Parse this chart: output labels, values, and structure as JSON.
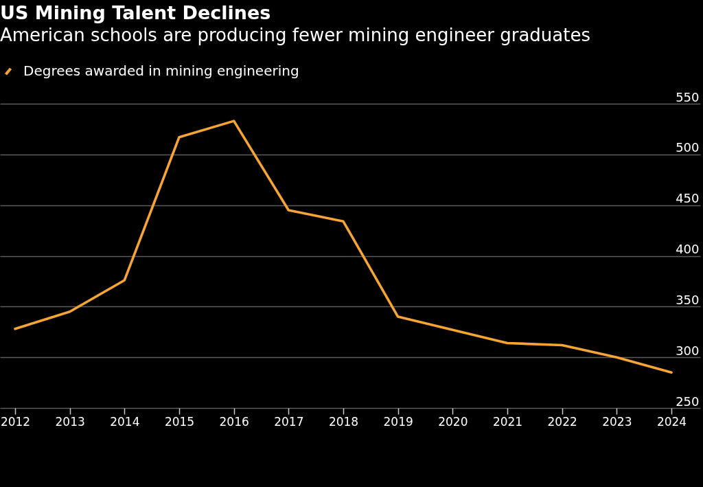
{
  "chart_data": {
    "type": "line",
    "title": "US Mining Talent Declines",
    "subtitle": "American schools are producing fewer mining engineer graduates",
    "categories": [
      "2012",
      "2013",
      "2014",
      "2015",
      "2016",
      "2017",
      "2018",
      "2019",
      "2020",
      "2021",
      "2022",
      "2023",
      "2024"
    ],
    "series": [
      {
        "name": "Degrees awarded in mining engineering",
        "color": "#f6a535",
        "values": [
          328,
          345,
          376,
          517,
          533,
          445,
          434,
          340,
          327,
          314,
          312,
          300,
          285
        ]
      }
    ],
    "ylim": [
      250,
      550
    ],
    "yticks": [
      250,
      300,
      350,
      400,
      450,
      500,
      550
    ],
    "grid": "y",
    "legend": "top left",
    "line_style": "solid"
  }
}
